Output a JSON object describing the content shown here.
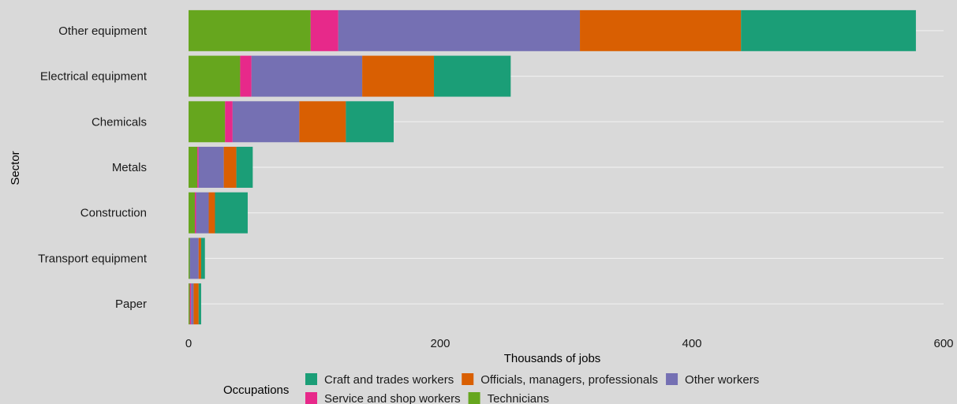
{
  "chart_data": {
    "type": "bar",
    "orientation": "horizontal",
    "stacked": true,
    "xlabel": "Thousands of jobs",
    "ylabel": "Sector",
    "xlim": [
      0,
      600
    ],
    "x_ticks": [
      0,
      200,
      400,
      600
    ],
    "grid": true,
    "legend_position": "bottom",
    "legend_title": "Occupations",
    "categories": [
      "Other equipment",
      "Electrical equipment",
      "Chemicals",
      "Metals",
      "Construction",
      "Transport equipment",
      "Paper"
    ],
    "series": [
      {
        "name": "Technicians",
        "color": "#66a61e",
        "values": [
          97,
          41,
          29,
          7,
          5,
          1,
          1
        ]
      },
      {
        "name": "Service and shop workers",
        "color": "#e7298a",
        "values": [
          22,
          9,
          6,
          1,
          1,
          0,
          1
        ]
      },
      {
        "name": "Other workers",
        "color": "#7570b3",
        "values": [
          192,
          88,
          53,
          20,
          10,
          7,
          2
        ]
      },
      {
        "name": "Officials, managers, professionals",
        "color": "#d95f02",
        "values": [
          128,
          57,
          37,
          10,
          5,
          2,
          4
        ]
      },
      {
        "name": "Craft and trades workers",
        "color": "#1b9e77",
        "values": [
          139,
          61,
          38,
          13,
          26,
          3,
          2
        ]
      }
    ],
    "legend_order": [
      "Craft and trades workers",
      "Officials, managers, professionals",
      "Other workers",
      "Service and shop workers",
      "Technicians"
    ]
  }
}
